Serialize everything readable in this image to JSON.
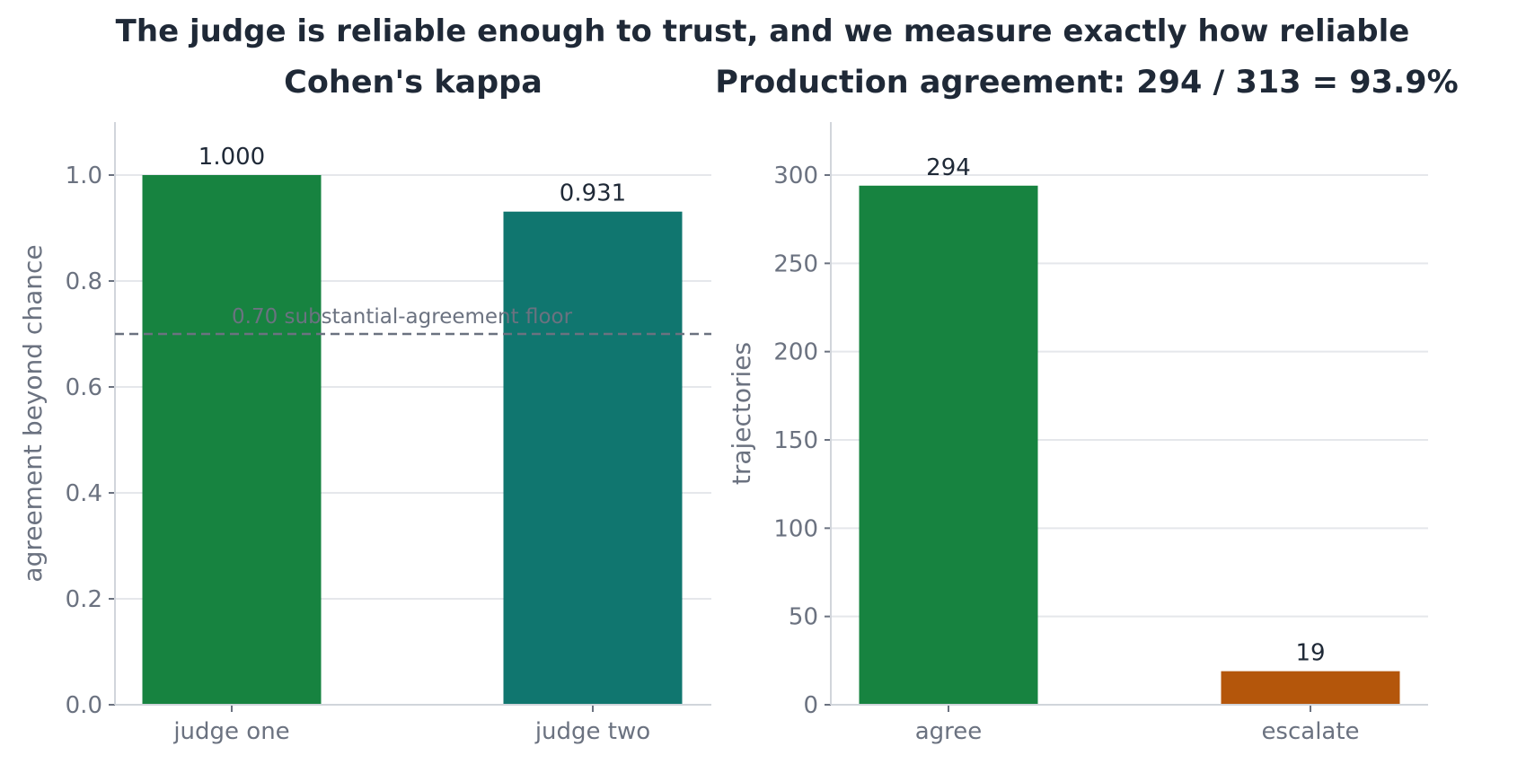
{
  "suptitle": "The judge is reliable enough to trust, and we measure exactly how reliable",
  "colors": {
    "green": "#178340",
    "teal": "#10766f",
    "orange": "#b4560b",
    "reference": "#6b7280"
  },
  "chart_data": [
    {
      "type": "bar",
      "title": "Cohen's kappa",
      "ylabel": "agreement beyond chance",
      "xlabel": "",
      "categories": [
        "judge one",
        "judge two"
      ],
      "values": [
        1.0,
        0.931
      ],
      "value_labels": [
        "1.000",
        "0.931"
      ],
      "bar_colors": [
        "#178340",
        "#10766f"
      ],
      "ylim": [
        0,
        1.1
      ],
      "yticks": [
        0.0,
        0.2,
        0.4,
        0.6,
        0.8,
        1.0
      ],
      "ytick_labels": [
        "0.0",
        "0.2",
        "0.4",
        "0.6",
        "0.8",
        "1.0"
      ],
      "reference_line": {
        "value": 0.7,
        "label": "0.70 substantial-agreement floor",
        "style": "dashed"
      },
      "grid": true
    },
    {
      "type": "bar",
      "title": "Production agreement: 294 / 313 = 93.9%",
      "ylabel": "trajectories",
      "xlabel": "",
      "categories": [
        "agree",
        "escalate"
      ],
      "values": [
        294,
        19
      ],
      "value_labels": [
        "294",
        "19"
      ],
      "bar_colors": [
        "#178340",
        "#b4560b"
      ],
      "ylim": [
        0,
        330
      ],
      "yticks": [
        0,
        50,
        100,
        150,
        200,
        250,
        300
      ],
      "ytick_labels": [
        "0",
        "50",
        "100",
        "150",
        "200",
        "250",
        "300"
      ],
      "grid": true
    }
  ]
}
